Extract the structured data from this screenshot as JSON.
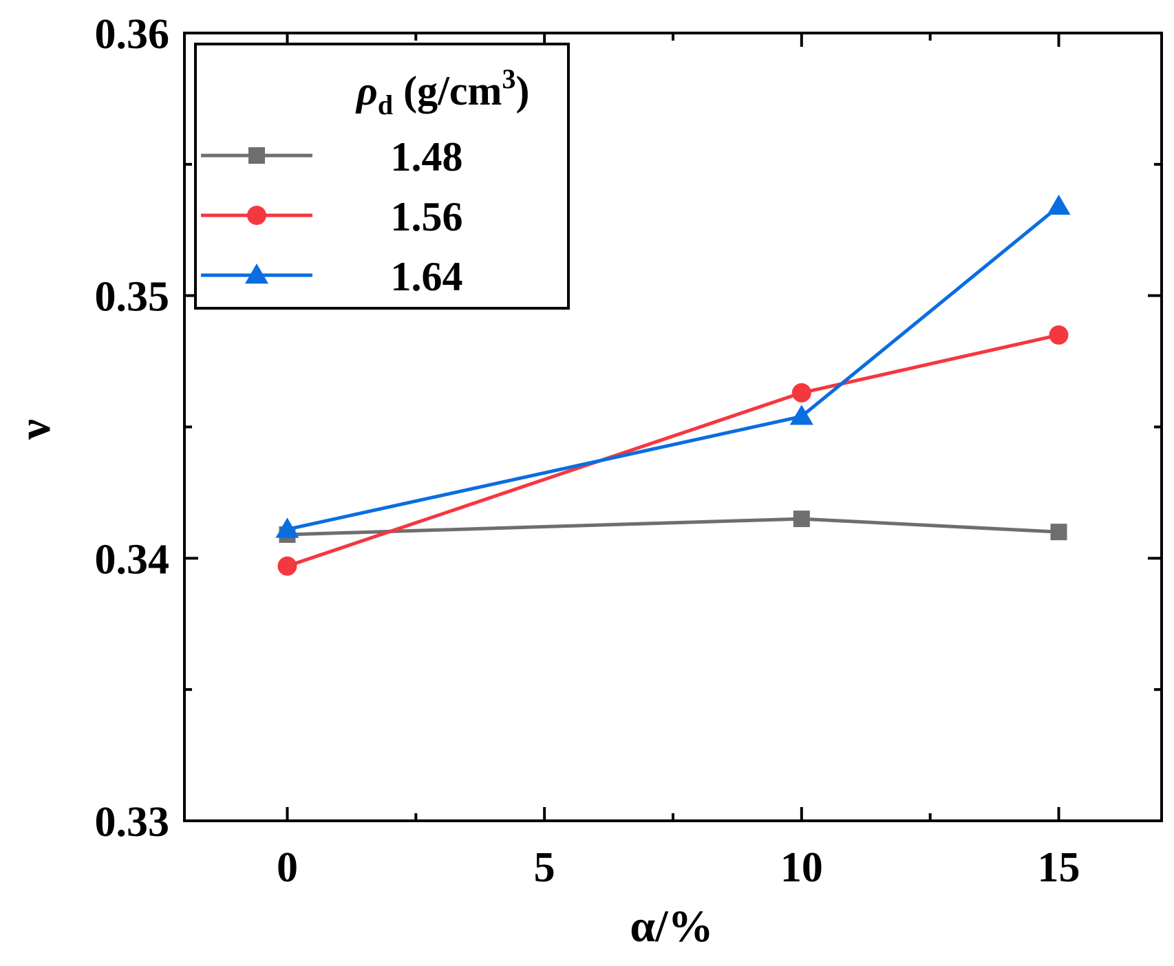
{
  "chart_data": {
    "type": "line",
    "title": "",
    "xlabel": "α/%",
    "ylabel": "ν",
    "xlim": [
      -2,
      17
    ],
    "ylim": [
      0.33,
      0.36
    ],
    "xticks": [
      0,
      5,
      10,
      15
    ],
    "xtick_labels": [
      "0",
      "5",
      "10",
      "15"
    ],
    "yticks": [
      0.33,
      0.34,
      0.35,
      0.36
    ],
    "ytick_labels": [
      "0.33",
      "0.34",
      "0.35",
      "0.36"
    ],
    "x": [
      0,
      10,
      15
    ],
    "legend": {
      "title_main": "ρ",
      "title_sub": "d",
      "title_unit": " (g/cm",
      "title_sup": "3",
      "title_close": ")",
      "placement": "top-left"
    },
    "series": [
      {
        "name": "1.48",
        "values": [
          0.3409,
          0.3415,
          0.341
        ],
        "color": "#6e6e6e",
        "marker": "square"
      },
      {
        "name": "1.56",
        "values": [
          0.3397,
          0.3463,
          0.3485
        ],
        "color": "#f5373f",
        "marker": "circle"
      },
      {
        "name": "1.64",
        "values": [
          0.3411,
          0.3454,
          0.3534
        ],
        "color": "#0a6de0",
        "marker": "triangle"
      }
    ]
  }
}
